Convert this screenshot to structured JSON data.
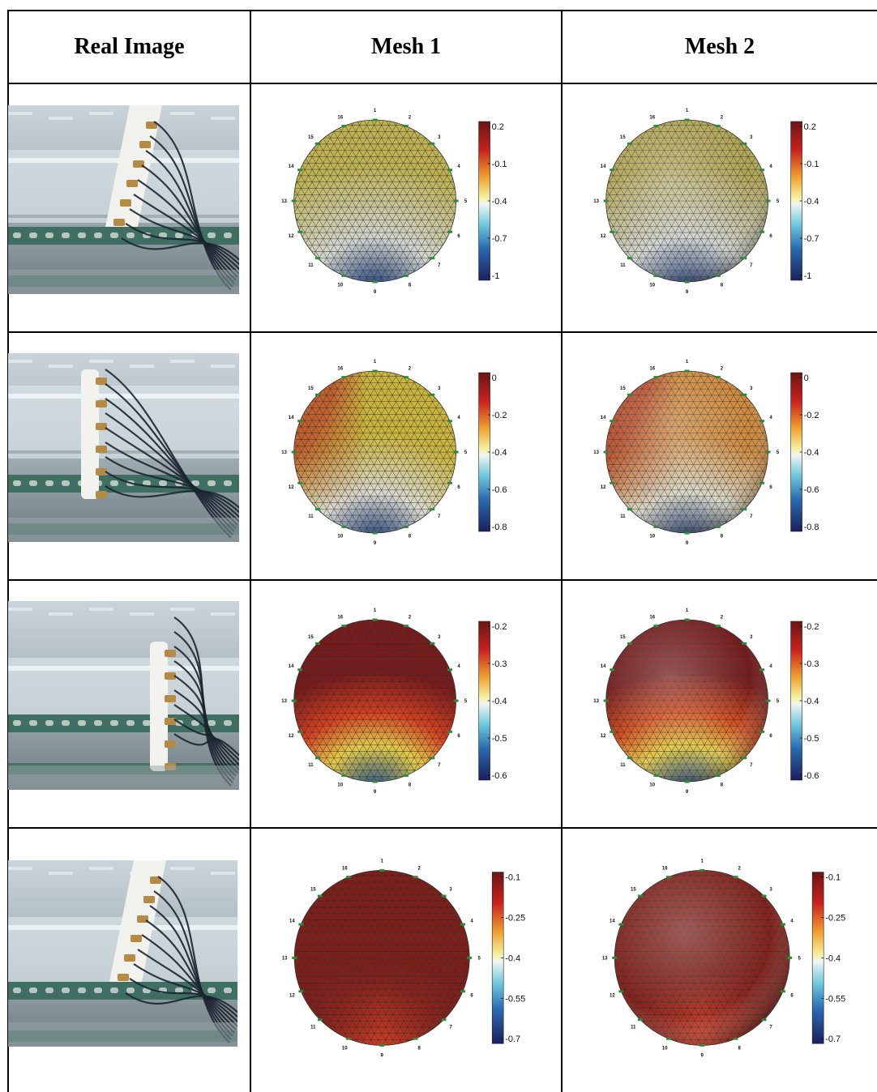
{
  "headers": [
    "Real Image",
    "Mesh 1",
    "Mesh 2"
  ],
  "electrodes": [
    "1",
    "2",
    "3",
    "4",
    "5",
    "6",
    "7",
    "8",
    "9",
    "10",
    "11",
    "12",
    "13",
    "14",
    "15",
    "16"
  ],
  "rows": [
    {
      "photo": "photo-pipe-flange-1",
      "scale": [
        "0.2",
        "-0.1",
        "-0.4",
        "-0.7",
        "-1"
      ],
      "mesh1": {
        "top": "#bfb352",
        "mid": "#d2d5cf",
        "bottom": "#1b3a74",
        "mode": "lower-dark"
      },
      "mesh2": {
        "top": "#b2a553",
        "mid": "#d0d3d0",
        "bottom": "#1d3c78",
        "mode": "lower-dark"
      }
    },
    {
      "photo": "photo-pipe-flange-2",
      "scale": [
        "0",
        "-0.2",
        "-0.4",
        "-0.6",
        "-0.8"
      ],
      "mesh1": {
        "top": "#cbb63d",
        "left": "#c2522b",
        "mid": "#d9d9cf",
        "bottom": "#1c3a74",
        "mode": "lower-dark"
      },
      "mesh2": {
        "top": "#d08a3c",
        "left": "#b8452a",
        "mid": "#d8d8c8",
        "bottom": "#1a3670",
        "mode": "lower-dark"
      }
    },
    {
      "photo": "photo-pipe-flange-3",
      "scale": [
        "-0.2",
        "-0.3",
        "-0.4",
        "-0.5",
        "-0.6"
      ],
      "mesh1": {
        "top": "#7a1a1a",
        "band": "#d8401f",
        "mid": "#e4cc4a",
        "bottom": "#1e4a8a",
        "mode": "lower-dark"
      },
      "mesh2": {
        "top": "#7a1a1a",
        "band": "#d84f1f",
        "mid": "#e4cc4a",
        "bottom": "#1e4a8a",
        "mode": "lower-dark"
      }
    },
    {
      "photo": "photo-pipe-flange-4",
      "scale": [
        "-0.1",
        "-0.25",
        "-0.4",
        "-0.55",
        "-0.7"
      ],
      "mesh1": {
        "top": "#7a1c1a",
        "mid": "#801f1a",
        "bottom": "#c43a22",
        "mode": "uniform"
      },
      "mesh2": {
        "top": "#7a1c1a",
        "mid": "#86221b",
        "bottom": "#d2432a",
        "mode": "uniform"
      }
    }
  ]
}
